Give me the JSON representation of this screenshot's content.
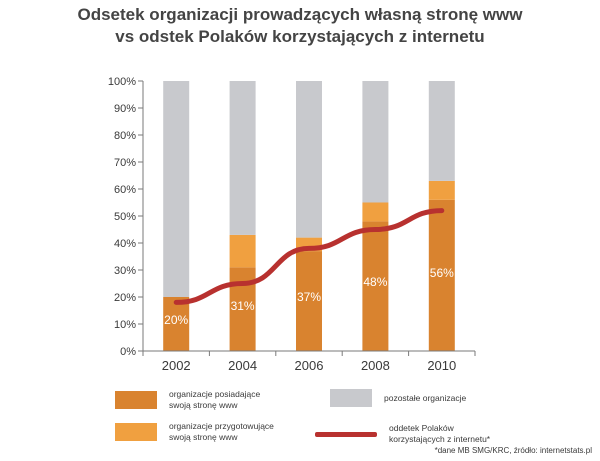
{
  "chart_data": {
    "type": "bar",
    "title_line1": "Odsetek organizacji prowadzących własną stronę www",
    "title_line2": "vs odstek Polaków korzystających z internetu",
    "categories": [
      "2002",
      "2004",
      "2006",
      "2008",
      "2010"
    ],
    "y_ticks": [
      "0%",
      "10%",
      "20%",
      "30%",
      "40%",
      "50%",
      "60%",
      "70%",
      "80%",
      "90%",
      "100%"
    ],
    "ylim": [
      0,
      100
    ],
    "series": [
      {
        "name": "organizacje posiadające\nswoją stronę www",
        "values": [
          20,
          31,
          37,
          48,
          56
        ],
        "labels": [
          "20%",
          "31%",
          "37%",
          "48%",
          "56%"
        ],
        "color": "#d9832f"
      },
      {
        "name": "organizacje przygotowujące\nswoją stronę www",
        "values": [
          0,
          12,
          5,
          7,
          7
        ],
        "color": "#f0a040"
      },
      {
        "name": "pozostałe organizacje",
        "values": [
          80,
          57,
          58,
          45,
          37
        ],
        "color": "#c8c9cd"
      }
    ],
    "line": {
      "name": "oddetek Polaków\nkorzystających z internetu*",
      "values": [
        18,
        25,
        38,
        45,
        52
      ],
      "color": "#b8312f"
    },
    "source": "*dane MB SMG/KRC, źródło: internetstats.pl"
  }
}
